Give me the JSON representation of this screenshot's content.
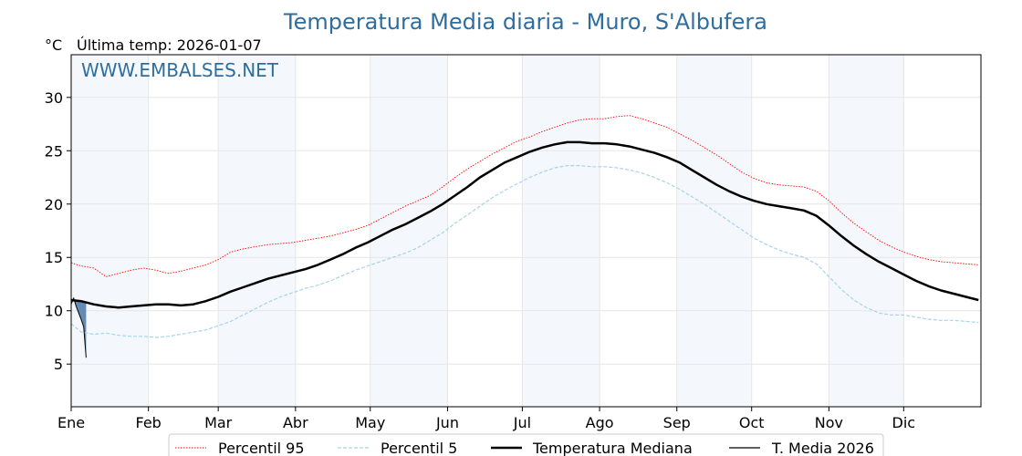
{
  "chart_data": {
    "type": "line",
    "title": "Temperatura Media diaria - Muro, S'Albufera",
    "unit_label": "°C",
    "last_temp_label": "Última temp: 2026-01-07",
    "watermark": "WWW.EMBALSES.NET",
    "ylim": [
      1,
      34
    ],
    "yticks": [
      5,
      10,
      15,
      20,
      25,
      30
    ],
    "x_range_days": [
      1,
      366
    ],
    "months": [
      {
        "label": "Ene",
        "start": 1
      },
      {
        "label": "Feb",
        "start": 32
      },
      {
        "label": "Mar",
        "start": 60
      },
      {
        "label": "Abr",
        "start": 91
      },
      {
        "label": "May",
        "start": 121
      },
      {
        "label": "Jun",
        "start": 152
      },
      {
        "label": "Jul",
        "start": 182
      },
      {
        "label": "Ago",
        "start": 213
      },
      {
        "label": "Sep",
        "start": 244
      },
      {
        "label": "Oct",
        "start": 274
      },
      {
        "label": "Nov",
        "start": 305
      },
      {
        "label": "Dic",
        "start": 335
      }
    ],
    "grid": true,
    "legend_position": "bottom-center",
    "series": [
      {
        "name": "Percentil 95",
        "color": "#ff0000",
        "style": "dotted",
        "days": [
          1,
          5,
          10,
          15,
          20,
          25,
          30,
          35,
          40,
          45,
          50,
          55,
          60,
          65,
          70,
          75,
          80,
          85,
          90,
          95,
          100,
          105,
          110,
          115,
          120,
          125,
          130,
          135,
          140,
          145,
          150,
          155,
          160,
          165,
          170,
          175,
          180,
          185,
          190,
          195,
          200,
          205,
          210,
          215,
          220,
          225,
          230,
          235,
          240,
          245,
          250,
          255,
          260,
          265,
          270,
          275,
          280,
          285,
          290,
          295,
          300,
          305,
          310,
          315,
          320,
          325,
          330,
          335,
          340,
          345,
          350,
          355,
          360,
          365
        ],
        "values": [
          14.5,
          14.2,
          14.0,
          13.2,
          13.5,
          13.8,
          14.0,
          13.8,
          13.5,
          13.7,
          14.0,
          14.3,
          14.8,
          15.5,
          15.8,
          16.0,
          16.2,
          16.3,
          16.4,
          16.6,
          16.8,
          17.0,
          17.3,
          17.6,
          18.0,
          18.6,
          19.2,
          19.8,
          20.3,
          20.8,
          21.6,
          22.5,
          23.3,
          24.0,
          24.7,
          25.3,
          25.9,
          26.3,
          26.8,
          27.2,
          27.6,
          27.9,
          28.0,
          28.0,
          28.2,
          28.3,
          28.0,
          27.6,
          27.2,
          26.6,
          26.0,
          25.3,
          24.6,
          23.8,
          23.0,
          22.4,
          22.0,
          21.8,
          21.7,
          21.6,
          21.2,
          20.3,
          19.2,
          18.2,
          17.4,
          16.6,
          16.0,
          15.5,
          15.1,
          14.8,
          14.6,
          14.5,
          14.4,
          14.3
        ]
      },
      {
        "name": "Percentil 5",
        "color": "#a8d4e6",
        "style": "dashed",
        "days": [
          1,
          5,
          10,
          15,
          20,
          25,
          30,
          35,
          40,
          45,
          50,
          55,
          60,
          65,
          70,
          75,
          80,
          85,
          90,
          95,
          100,
          105,
          110,
          115,
          120,
          125,
          130,
          135,
          140,
          145,
          150,
          155,
          160,
          165,
          170,
          175,
          180,
          185,
          190,
          195,
          200,
          205,
          210,
          215,
          220,
          225,
          230,
          235,
          240,
          245,
          250,
          255,
          260,
          265,
          270,
          275,
          280,
          285,
          290,
          295,
          300,
          305,
          310,
          315,
          320,
          325,
          330,
          335,
          340,
          345,
          350,
          355,
          360,
          365
        ],
        "values": [
          8.8,
          8.0,
          7.8,
          7.9,
          7.7,
          7.6,
          7.6,
          7.5,
          7.6,
          7.8,
          8.0,
          8.2,
          8.6,
          9.0,
          9.6,
          10.2,
          10.8,
          11.3,
          11.7,
          12.1,
          12.4,
          12.8,
          13.3,
          13.8,
          14.2,
          14.6,
          15.0,
          15.4,
          15.9,
          16.6,
          17.3,
          18.2,
          19.0,
          19.8,
          20.6,
          21.3,
          21.9,
          22.5,
          23.0,
          23.4,
          23.6,
          23.6,
          23.5,
          23.5,
          23.4,
          23.2,
          22.9,
          22.5,
          22.0,
          21.4,
          20.7,
          20.0,
          19.2,
          18.4,
          17.6,
          16.8,
          16.2,
          15.7,
          15.3,
          15.0,
          14.4,
          13.2,
          12.0,
          11.0,
          10.3,
          9.8,
          9.6,
          9.6,
          9.4,
          9.2,
          9.1,
          9.1,
          9.0,
          8.9
        ]
      },
      {
        "name": "Temperatura Mediana",
        "color": "#000000",
        "style": "solid-thick",
        "days": [
          1,
          5,
          10,
          15,
          20,
          25,
          30,
          35,
          40,
          45,
          50,
          55,
          60,
          65,
          70,
          75,
          80,
          85,
          90,
          95,
          100,
          105,
          110,
          115,
          120,
          125,
          130,
          135,
          140,
          145,
          150,
          155,
          160,
          165,
          170,
          175,
          180,
          185,
          190,
          195,
          200,
          205,
          210,
          215,
          220,
          225,
          230,
          235,
          240,
          245,
          250,
          255,
          260,
          265,
          270,
          275,
          280,
          285,
          290,
          295,
          300,
          305,
          310,
          315,
          320,
          325,
          330,
          335,
          340,
          345,
          350,
          355,
          360,
          365
        ],
        "values": [
          11.0,
          10.9,
          10.6,
          10.4,
          10.3,
          10.4,
          10.5,
          10.6,
          10.6,
          10.5,
          10.6,
          10.9,
          11.3,
          11.8,
          12.2,
          12.6,
          13.0,
          13.3,
          13.6,
          13.9,
          14.3,
          14.8,
          15.3,
          15.9,
          16.4,
          17.0,
          17.6,
          18.1,
          18.7,
          19.3,
          20.0,
          20.8,
          21.6,
          22.5,
          23.2,
          23.9,
          24.4,
          24.9,
          25.3,
          25.6,
          25.8,
          25.8,
          25.7,
          25.7,
          25.6,
          25.4,
          25.1,
          24.8,
          24.4,
          23.9,
          23.2,
          22.5,
          21.8,
          21.2,
          20.7,
          20.3,
          20.0,
          19.8,
          19.6,
          19.4,
          18.9,
          18.0,
          17.0,
          16.1,
          15.3,
          14.6,
          14.0,
          13.4,
          12.8,
          12.3,
          11.9,
          11.6,
          11.3,
          11.0
        ]
      },
      {
        "name": "T. Media 2026",
        "color": "#000000",
        "fill_color": "#4a78a8",
        "style": "solid-thin",
        "days": [
          1,
          2,
          3,
          4,
          5,
          6,
          7
        ],
        "values": [
          10.6,
          11.2,
          10.4,
          9.8,
          9.2,
          8.5,
          5.6
        ]
      }
    ]
  }
}
